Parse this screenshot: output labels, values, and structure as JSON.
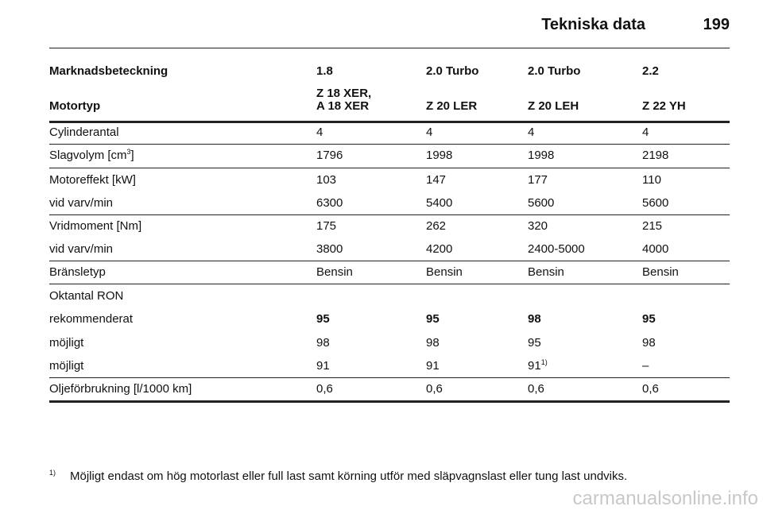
{
  "header": {
    "title": "Tekniska data",
    "page": "199"
  },
  "table": {
    "rows": [
      [
        "Marknadsbeteckning",
        "1.8",
        "2.0 Turbo",
        "2.0 Turbo",
        "2.2"
      ],
      [
        "Motortyp",
        {
          "lines": [
            "Z 18 XER,",
            "A 18 XER"
          ]
        },
        "Z 20 LER",
        "Z 20 LEH",
        "Z 22 YH"
      ],
      [
        "Cylinderantal",
        "4",
        "4",
        "4",
        "4"
      ],
      [
        {
          "text": "Slagvolym [cm",
          "sup": "3",
          "tail": "]"
        },
        "1796",
        "1998",
        "1998",
        "2198"
      ],
      [
        "Motoreffekt [kW]",
        "103",
        "147",
        "177",
        "110"
      ],
      [
        "vid varv/min",
        "6300",
        "5400",
        "5600",
        "5600"
      ],
      [
        "Vridmoment [Nm]",
        "175",
        "262",
        "320",
        "215"
      ],
      [
        "vid varv/min",
        "3800",
        "4200",
        "2400-5000",
        "4000"
      ],
      [
        "Bränsletyp",
        "Bensin",
        "Bensin",
        "Bensin",
        "Bensin"
      ],
      [
        "Oktantal RON"
      ],
      [
        "rekommenderat",
        "95",
        "95",
        "98",
        "95"
      ],
      [
        "möjligt",
        "98",
        "98",
        "95",
        "98"
      ],
      [
        "möjligt",
        "91",
        "91",
        {
          "text": "91",
          "sup": "1)"
        },
        "–"
      ],
      [
        "Oljeförbrukning [l/1000 km]",
        "0,6",
        "0,6",
        "0,6",
        "0,6"
      ]
    ]
  },
  "footnote": {
    "marker": "1)",
    "text": "Möjligt endast om hög motorlast eller full last samt körning utför med släpvagnslast eller tung last undviks."
  },
  "watermark": "carmanualsonline.info"
}
